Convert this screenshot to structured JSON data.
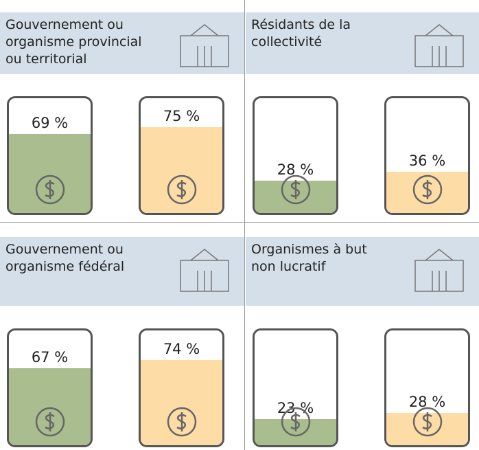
{
  "chart_data": [
    {
      "type": "bar",
      "title": "Gouvernement ou organisme provincial ou territorial",
      "values": [
        69,
        75
      ],
      "value_labels": [
        "69 %",
        "75 %"
      ],
      "colors": [
        "#a9bd8e",
        "#fddca5"
      ],
      "ylim": [
        0,
        100
      ]
    },
    {
      "type": "bar",
      "title": "Résidants de la collectivité",
      "values": [
        28,
        36
      ],
      "value_labels": [
        "28 %",
        "36 %"
      ],
      "colors": [
        "#a9bd8e",
        "#fddca5"
      ],
      "ylim": [
        0,
        100
      ]
    },
    {
      "type": "bar",
      "title": "Gouvernement ou organisme fédéral",
      "values": [
        67,
        74
      ],
      "value_labels": [
        "67 %",
        "74 %"
      ],
      "colors": [
        "#a9bd8e",
        "#fddca5"
      ],
      "ylim": [
        0,
        100
      ]
    },
    {
      "type": "bar",
      "title": "Organismes à but non lucratif",
      "values": [
        23,
        28
      ],
      "value_labels": [
        "23 %",
        "28 %"
      ],
      "colors": [
        "#a9bd8e",
        "#fddca5"
      ],
      "ylim": [
        0,
        100
      ]
    }
  ]
}
